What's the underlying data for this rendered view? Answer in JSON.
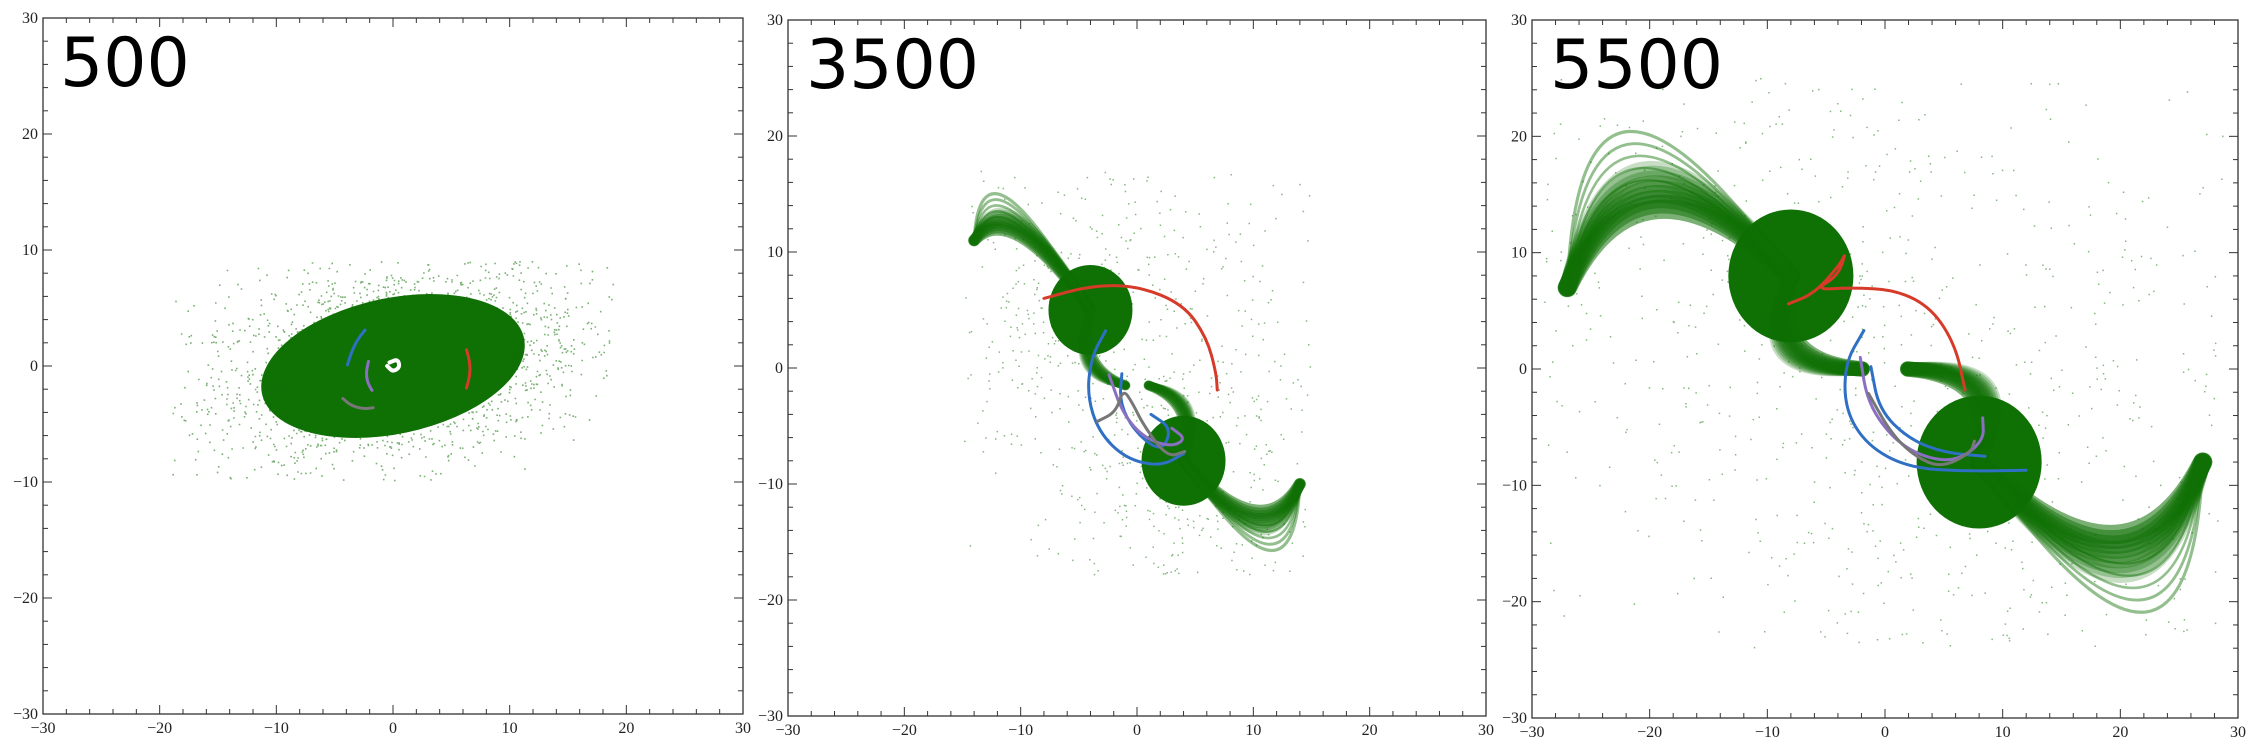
{
  "figure": {
    "colors": {
      "particles": "#0f7004",
      "red": "#d63b2a",
      "blue": "#2f6fc4",
      "purple": "#8a6fc2",
      "gray": "#777777",
      "white": "#ffffff",
      "frame": "#333333"
    }
  },
  "chart_data": [
    {
      "type": "scatter",
      "label": "500",
      "xlim": [
        -30,
        30
      ],
      "ylim": [
        -30,
        30
      ],
      "xticks": [
        -30,
        -20,
        -10,
        0,
        10,
        20,
        30
      ],
      "yticks": [
        -30,
        -20,
        -10,
        0,
        10,
        20,
        30
      ],
      "xtick_labels": [
        "−30",
        "−20",
        "−10",
        "0",
        "10",
        "20",
        "30"
      ],
      "ytick_labels": [
        "−30",
        "−20",
        "−10",
        "0",
        "10",
        "20",
        "30"
      ],
      "grid": false,
      "particle_cloud": {
        "shape": "ellipse",
        "center": [
          0,
          0
        ],
        "semi_axes": [
          14,
          7.5
        ],
        "tilt_deg": 12,
        "extent_x": [
          -19,
          19
        ],
        "extent_y": [
          -10,
          9
        ]
      },
      "tracks": [
        {
          "color": "red",
          "points": [
            [
              6.3,
              1.4
            ],
            [
              6.6,
              0.3
            ],
            [
              6.6,
              -0.8
            ],
            [
              6.3,
              -1.9
            ]
          ]
        },
        {
          "color": "blue",
          "points": [
            [
              -2.4,
              3.1
            ],
            [
              -3.1,
              2.2
            ],
            [
              -3.6,
              1.1
            ],
            [
              -3.9,
              0.1
            ]
          ]
        },
        {
          "color": "purple",
          "points": [
            [
              -2.1,
              0.4
            ],
            [
              -2.3,
              -0.5
            ],
            [
              -2.2,
              -1.4
            ],
            [
              -1.8,
              -2.1
            ]
          ]
        },
        {
          "color": "gray",
          "points": [
            [
              -4.3,
              -2.8
            ],
            [
              -3.6,
              -3.4
            ],
            [
              -2.6,
              -3.7
            ],
            [
              -1.7,
              -3.6
            ]
          ]
        },
        {
          "color": "white",
          "points": [
            [
              -0.3,
              0.3
            ],
            [
              0.4,
              0.6
            ],
            [
              0.6,
              -0.1
            ],
            [
              0.0,
              -0.5
            ],
            [
              -0.5,
              0.0
            ]
          ]
        }
      ]
    },
    {
      "type": "scatter",
      "label": "3500",
      "xlim": [
        -30,
        30
      ],
      "ylim": [
        -30,
        30
      ],
      "xticks": [
        -30,
        -20,
        -10,
        0,
        10,
        20,
        30
      ],
      "yticks": [
        -30,
        -20,
        -10,
        0,
        10,
        20,
        30
      ],
      "xtick_labels": [
        "−30",
        "−20",
        "−10",
        "0",
        "10",
        "20",
        "30"
      ],
      "ytick_labels": [
        "−30",
        "−20",
        "−10",
        "0",
        "10",
        "20",
        "30"
      ],
      "grid": false,
      "particle_cloud": {
        "shape": "two-arm spiral",
        "core_a": [
          -4,
          5
        ],
        "core_b": [
          4,
          -8
        ],
        "arm_a_end": [
          -14,
          11
        ],
        "arm_b_end": [
          14,
          -10
        ],
        "extent_x": [
          -15,
          15
        ],
        "extent_y": [
          -18,
          17
        ]
      },
      "tracks": [
        {
          "color": "red",
          "points": [
            [
              -8,
              6
            ],
            [
              -4,
              7.1
            ],
            [
              0,
              7.1
            ],
            [
              4,
              5.5
            ],
            [
              6,
              2.6
            ],
            [
              6.8,
              -0.4
            ],
            [
              6.9,
              -1.9
            ]
          ]
        },
        {
          "color": "blue",
          "points": [
            [
              -2.7,
              3.2
            ],
            [
              -3.9,
              1
            ],
            [
              -4.3,
              -2.3
            ],
            [
              -3.3,
              -5.5
            ],
            [
              -1,
              -7.8
            ],
            [
              2,
              -8.5
            ],
            [
              4,
              -7.4
            ]
          ]
        },
        {
          "color": "blue",
          "points": [
            [
              -1.3,
              -0.5
            ],
            [
              -1.5,
              -3
            ],
            [
              -0.2,
              -5.5
            ],
            [
              2.1,
              -7.3
            ],
            [
              3,
              -5.2
            ],
            [
              1.2,
              -4
            ]
          ]
        },
        {
          "color": "purple",
          "points": [
            [
              -2.4,
              -0.6
            ],
            [
              -1.2,
              -4
            ],
            [
              0.7,
              -6.1
            ],
            [
              3,
              -6.8
            ],
            [
              4.2,
              -6.1
            ],
            [
              3,
              -5.2
            ]
          ]
        },
        {
          "color": "gray",
          "points": [
            [
              -3.4,
              -4.6
            ],
            [
              -1.8,
              -3.8
            ],
            [
              -1.2,
              -1.8
            ],
            [
              -0.4,
              -3
            ],
            [
              0.6,
              -5
            ],
            [
              2.6,
              -7.7
            ],
            [
              4.1,
              -7.2
            ]
          ]
        }
      ]
    },
    {
      "type": "scatter",
      "label": "5500",
      "xlim": [
        -30,
        30
      ],
      "ylim": [
        -30,
        30
      ],
      "xticks": [
        -30,
        -20,
        -10,
        0,
        10,
        20,
        30
      ],
      "yticks": [
        -30,
        -20,
        -10,
        0,
        10,
        20,
        30
      ],
      "xtick_labels": [
        "−30",
        "−20",
        "−10",
        "0",
        "10",
        "20",
        "30"
      ],
      "ytick_labels": [
        "−30",
        "−20",
        "−10",
        "0",
        "10",
        "20",
        "30"
      ],
      "grid": false,
      "particle_cloud": {
        "shape": "two-arm spiral",
        "core_a": [
          -8,
          8
        ],
        "core_b": [
          8,
          -8
        ],
        "arm_a_end": [
          -27,
          7
        ],
        "arm_b_end": [
          27,
          -8
        ],
        "extent_x": [
          -29,
          29
        ],
        "extent_y": [
          -24,
          25
        ]
      },
      "tracks": [
        {
          "color": "red",
          "points": [
            [
              -8.2,
              5.6
            ],
            [
              -6,
              6.5
            ],
            [
              -3.8,
              9
            ],
            [
              -3.3,
              10.1
            ],
            [
              -4,
              8
            ],
            [
              -6,
              6.8
            ],
            [
              -3,
              7
            ],
            [
              1,
              6.8
            ],
            [
              4,
              5.2
            ],
            [
              6,
              2
            ],
            [
              6.8,
              -1.8
            ]
          ]
        },
        {
          "color": "blue",
          "points": [
            [
              -1.8,
              3.3
            ],
            [
              -3.4,
              0.5
            ],
            [
              -3.4,
              -3.5
            ],
            [
              -1.5,
              -6.6
            ],
            [
              2,
              -8.5
            ],
            [
              7,
              -8.8
            ],
            [
              12,
              -8.7
            ]
          ]
        },
        {
          "color": "blue",
          "points": [
            [
              -1.2,
              0.2
            ],
            [
              -0.5,
              -3.5
            ],
            [
              2,
              -6
            ],
            [
              5,
              -7.2
            ],
            [
              8.5,
              -7.5
            ]
          ]
        },
        {
          "color": "purple",
          "points": [
            [
              -2.1,
              1
            ],
            [
              -1.5,
              -2.8
            ],
            [
              0.5,
              -5.8
            ],
            [
              3,
              -7.5
            ],
            [
              6,
              -8
            ],
            [
              8.4,
              -6.2
            ],
            [
              8.3,
              -4.2
            ]
          ]
        },
        {
          "color": "gray",
          "points": [
            [
              -1.4,
              -2.1
            ],
            [
              0.5,
              -5.5
            ],
            [
              2.5,
              -7.5
            ],
            [
              4.8,
              -8.5
            ],
            [
              7.3,
              -7.2
            ],
            [
              7.6,
              -6.2
            ]
          ]
        }
      ]
    }
  ]
}
